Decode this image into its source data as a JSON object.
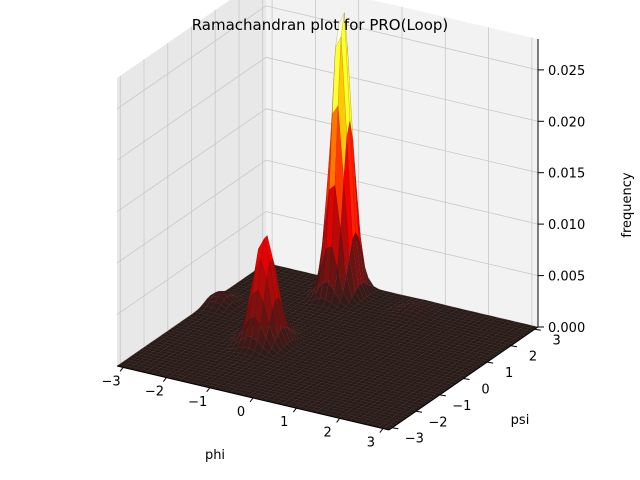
{
  "chart_data": {
    "type": "surface3d",
    "title": "Ramachandran plot for PRO(Loop)",
    "xlabel": "phi",
    "ylabel": "psi",
    "zlabel": "frequency",
    "xlim": [
      -3.14,
      3.14
    ],
    "ylim": [
      -3.14,
      3.14
    ],
    "zlim": [
      0,
      0.028
    ],
    "x_ticks": [
      "−3",
      "−2",
      "−1",
      "0",
      "1",
      "2",
      "3"
    ],
    "y_ticks": [
      "−3",
      "−2",
      "−1",
      "0",
      "1",
      "2",
      "3"
    ],
    "z_ticks": [
      "0.000",
      "0.005",
      "0.010",
      "0.015",
      "0.020",
      "0.025"
    ],
    "colormap": "hot",
    "grid": true,
    "peaks": [
      {
        "phi": -1.1,
        "psi": 2.6,
        "height": 0.0285,
        "spread_phi": 0.18,
        "spread_psi": 0.28
      },
      {
        "phi": -1.2,
        "psi": -0.45,
        "height": 0.0105,
        "spread_phi": 0.22,
        "spread_psi": 0.3
      },
      {
        "phi": -2.9,
        "psi": 0.8,
        "height": 0.0012,
        "spread_phi": 0.2,
        "spread_psi": 0.25
      },
      {
        "phi": 0.6,
        "psi": 2.5,
        "height": 0.0004,
        "spread_phi": 0.25,
        "spread_psi": 0.3
      }
    ],
    "colors": {
      "pane_back": "#f2f2f2",
      "pane_side": "#e8e8e8",
      "pane_floor": "#eaeaea",
      "grid": "#c8c8c8",
      "axis": "#000000"
    }
  }
}
